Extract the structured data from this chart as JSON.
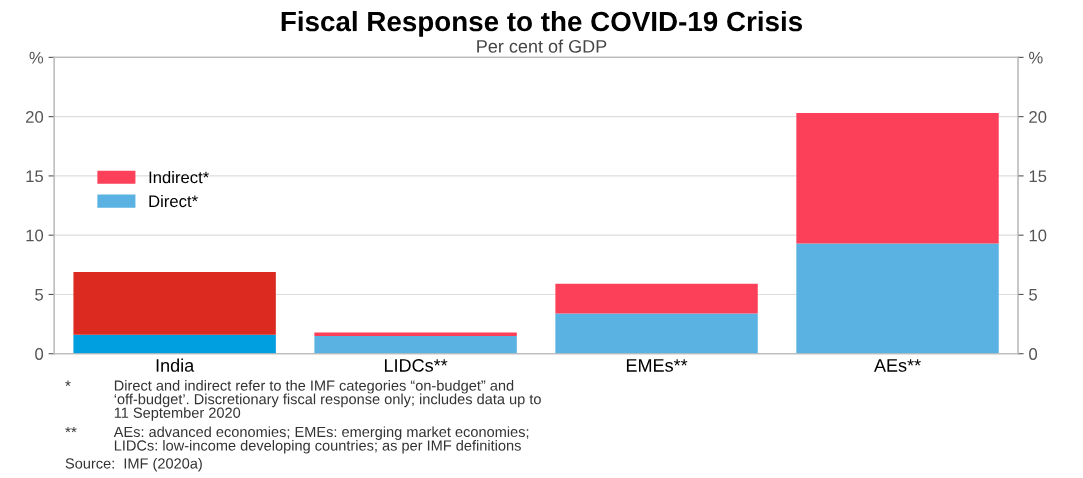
{
  "chart_data": {
    "type": "bar",
    "stacked": true,
    "title": "Fiscal Response to the COVID-19 Crisis",
    "subtitle": "Per cent of GDP",
    "categories": [
      "India",
      "LIDCs**",
      "EMEs**",
      "AEs**"
    ],
    "series": [
      {
        "name": "Direct*",
        "color": "#5ab2e2",
        "colors": [
          "#009fdf",
          "#5ab2e2",
          "#5ab2e2",
          "#5ab2e2"
        ],
        "values": [
          1.6,
          1.5,
          3.4,
          9.3
        ]
      },
      {
        "name": "Indirect*",
        "color": "#fc4059",
        "colors": [
          "#dc2a20",
          "#fc4059",
          "#fc4059",
          "#fc4059"
        ],
        "values": [
          5.3,
          0.3,
          2.5,
          11.0
        ]
      }
    ],
    "ylim": [
      0,
      25
    ],
    "yticks": [
      0,
      5,
      10,
      15,
      20,
      {
        "value": 25,
        "label": "%"
      }
    ],
    "y2lim": [
      0,
      25
    ],
    "y2ticks": [
      0,
      5,
      10,
      15,
      20,
      {
        "value": 25,
        "label": "%"
      }
    ],
    "grid": "y",
    "legend": "left",
    "annotations": [
      "*\tDirect and indirect refer to the IMF categories “on-budget” and\n‘off-budget’. Discretionary fiscal response only; includes data up to\n11 September 2020",
      "**\tAEs: advanced economies; EMEs: emerging market economies;\nLIDCs: low-income developing countries; as per IMF definitions",
      "Source:\tIMF (2020a)"
    ]
  }
}
